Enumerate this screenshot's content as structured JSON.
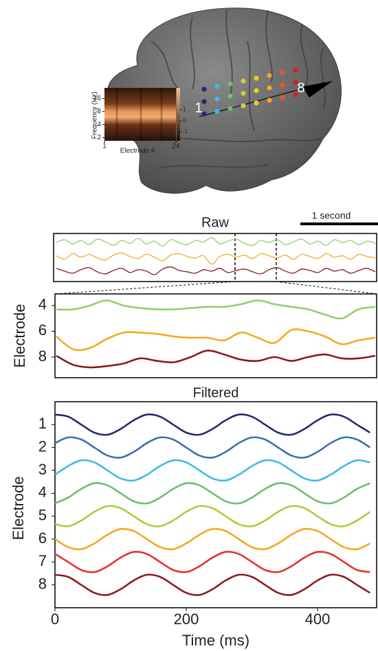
{
  "brain": {
    "electrode_labels": [
      "1",
      "8"
    ],
    "inset": {
      "ylabel": "Frequency (Hz)",
      "yticks": [
        2,
        4,
        8,
        16
      ],
      "ylim": [
        1.7,
        28
      ],
      "log": true,
      "xlabel": "Electrode #",
      "xticks": [
        1,
        24
      ],
      "xlim": [
        1,
        24
      ],
      "colorbar_ticks": [
        1,
        0,
        -1
      ],
      "clim": [
        -1,
        1
      ]
    }
  },
  "chart_data": [
    {
      "type": "line",
      "title": "Raw",
      "scale_bar_label": "1 second",
      "series": [
        {
          "color": "#8fcf6e",
          "values": [
            4.2,
            3.8,
            4.4,
            3.9,
            4.5,
            3.7,
            4.1,
            4.6,
            3.9,
            4.3,
            3.6,
            4.4,
            4.0,
            4.7,
            3.8,
            4.2,
            4.5,
            3.9,
            4.1,
            3.5,
            4.4,
            4.0,
            3.7,
            4.3,
            4.6,
            3.9,
            4.2,
            3.8,
            4.5,
            4.1,
            3.7,
            4.4,
            4.0,
            4.6,
            3.8,
            4.2,
            3.9,
            4.5,
            4.0,
            4.3
          ]
        },
        {
          "color": "#f7a823",
          "values": [
            6.1,
            6.6,
            5.8,
            6.3,
            5.9,
            6.4,
            6.7,
            6.0,
            5.7,
            6.2,
            6.5,
            5.9,
            6.3,
            6.8,
            6.0,
            5.8,
            6.2,
            6.4,
            6.1,
            7.3,
            6.2,
            5.9,
            6.3,
            6.0,
            6.5,
            5.8,
            6.1,
            6.4,
            6.0,
            6.6,
            5.9,
            6.2,
            6.5,
            5.8,
            6.3,
            6.1,
            6.6,
            5.9,
            6.2,
            6.4
          ]
        },
        {
          "color": "#8b1a1f",
          "values": [
            7.9,
            8.3,
            8.6,
            8.1,
            7.8,
            8.4,
            8.7,
            8.2,
            7.9,
            8.5,
            8.1,
            8.3,
            8.8,
            8.0,
            7.7,
            8.2,
            8.4,
            8.6,
            8.1,
            8.3,
            7.9,
            8.5,
            8.2,
            8.0,
            8.4,
            8.7,
            8.1,
            7.8,
            8.3,
            8.6,
            8.0,
            8.2,
            8.5,
            7.9,
            8.3,
            8.1,
            8.6,
            8.2,
            7.9,
            8.4
          ]
        }
      ]
    },
    {
      "type": "line",
      "ylabel": "Electrode",
      "ylim": [
        9.6,
        3.1
      ],
      "yticks": [
        4,
        6,
        8
      ],
      "series": [
        {
          "color": "#8fcf6e",
          "values": [
            4.3,
            4.3,
            4.0,
            3.6,
            4.0,
            4.2,
            4.3,
            4.3,
            4.2,
            4.1,
            4.1,
            3.9,
            3.6,
            3.9,
            4.1,
            4.3,
            4.7,
            5.0,
            4.3,
            4.1
          ]
        },
        {
          "color": "#f7a823",
          "values": [
            6.4,
            7.4,
            7.3,
            6.6,
            6.1,
            6.1,
            6.2,
            6.4,
            6.5,
            6.5,
            6.7,
            6.1,
            6.5,
            6.9,
            5.9,
            6.0,
            6.4,
            7.0,
            6.7,
            6.5
          ]
        },
        {
          "color": "#8b1a1f",
          "values": [
            7.9,
            8.6,
            8.8,
            8.7,
            8.5,
            8.1,
            8.3,
            8.4,
            8.0,
            7.5,
            7.8,
            8.2,
            8.3,
            8.0,
            8.3,
            8.0,
            7.8,
            8.1,
            8.1,
            7.9
          ]
        }
      ]
    },
    {
      "type": "line",
      "title": "Filtered",
      "xlabel": "Time (ms)",
      "ylabel": "Electrode",
      "x": [
        0,
        20,
        40,
        60,
        80,
        100,
        120,
        140,
        160,
        180,
        200,
        220,
        240,
        260,
        280,
        300,
        320,
        340,
        360,
        380,
        400,
        420,
        440,
        460,
        480
      ],
      "xlim": [
        0,
        490
      ],
      "xticks": [
        0,
        200,
        400
      ],
      "ylim": [
        9,
        0
      ],
      "yticks": [
        1,
        2,
        3,
        4,
        5,
        6,
        7,
        8
      ],
      "series": [
        {
          "color": "#232a6e",
          "values": [
            0.56,
            0.65,
            1,
            1.35,
            1.44,
            1.19,
            0.81,
            0.56,
            0.65,
            1,
            1.35,
            1.44,
            1.19,
            0.81,
            0.56,
            0.65,
            1,
            1.35,
            1.44,
            1.19,
            0.81,
            0.56,
            0.65,
            1,
            1.35
          ]
        },
        {
          "color": "#3b6fb6",
          "values": [
            1.81,
            1.56,
            1.65,
            2,
            2.35,
            2.44,
            2.19,
            1.81,
            1.56,
            1.65,
            2,
            2.35,
            2.44,
            2.19,
            1.81,
            1.56,
            1.65,
            2,
            2.35,
            2.44,
            2.19,
            1.81,
            1.56,
            1.65,
            2
          ]
        },
        {
          "color": "#3fb9ea",
          "values": [
            3.19,
            2.81,
            2.56,
            2.65,
            3,
            3.35,
            3.44,
            3.19,
            2.81,
            2.56,
            2.65,
            3,
            3.35,
            3.44,
            3.19,
            2.81,
            2.56,
            2.65,
            3,
            3.35,
            3.44,
            3.19,
            2.81,
            2.56,
            2.65
          ]
        },
        {
          "color": "#6dbf6a",
          "values": [
            4.44,
            4.19,
            3.81,
            3.56,
            3.65,
            4,
            4.35,
            4.44,
            4.19,
            3.81,
            3.56,
            3.65,
            4,
            4.35,
            4.44,
            4.19,
            3.81,
            3.56,
            3.65,
            4,
            4.35,
            4.44,
            4.19,
            3.81,
            3.56
          ]
        },
        {
          "color": "#a8cd3c",
          "values": [
            5.35,
            5.44,
            5.19,
            4.81,
            4.56,
            4.65,
            5,
            5.35,
            5.44,
            5.19,
            4.81,
            4.56,
            4.65,
            5,
            5.35,
            5.44,
            5.19,
            4.81,
            4.56,
            4.65,
            5,
            5.35,
            5.44,
            5.19,
            4.81
          ]
        },
        {
          "color": "#f6a623",
          "values": [
            6,
            6.35,
            6.44,
            6.19,
            5.81,
            5.56,
            5.65,
            6,
            6.35,
            6.44,
            6.19,
            5.81,
            5.56,
            5.65,
            6,
            6.35,
            6.44,
            6.19,
            5.81,
            5.56,
            5.65,
            6,
            6.35,
            6.44,
            6.19
          ]
        },
        {
          "color": "#e8302b",
          "values": [
            6.65,
            7,
            7.35,
            7.44,
            7.19,
            6.81,
            6.56,
            6.65,
            7,
            7.35,
            7.44,
            7.19,
            6.81,
            6.56,
            6.65,
            7,
            7.35,
            7.44,
            7.19,
            6.81,
            6.56,
            6.65,
            7,
            7.35,
            7.44
          ]
        },
        {
          "color": "#8b1a1f",
          "values": [
            7.56,
            7.65,
            8,
            8.35,
            8.44,
            8.19,
            7.81,
            7.56,
            7.65,
            8,
            8.35,
            8.44,
            8.19,
            7.81,
            7.56,
            7.65,
            8,
            8.35,
            8.44,
            8.19,
            7.81,
            7.56,
            7.65,
            8,
            8.35
          ]
        }
      ]
    }
  ]
}
